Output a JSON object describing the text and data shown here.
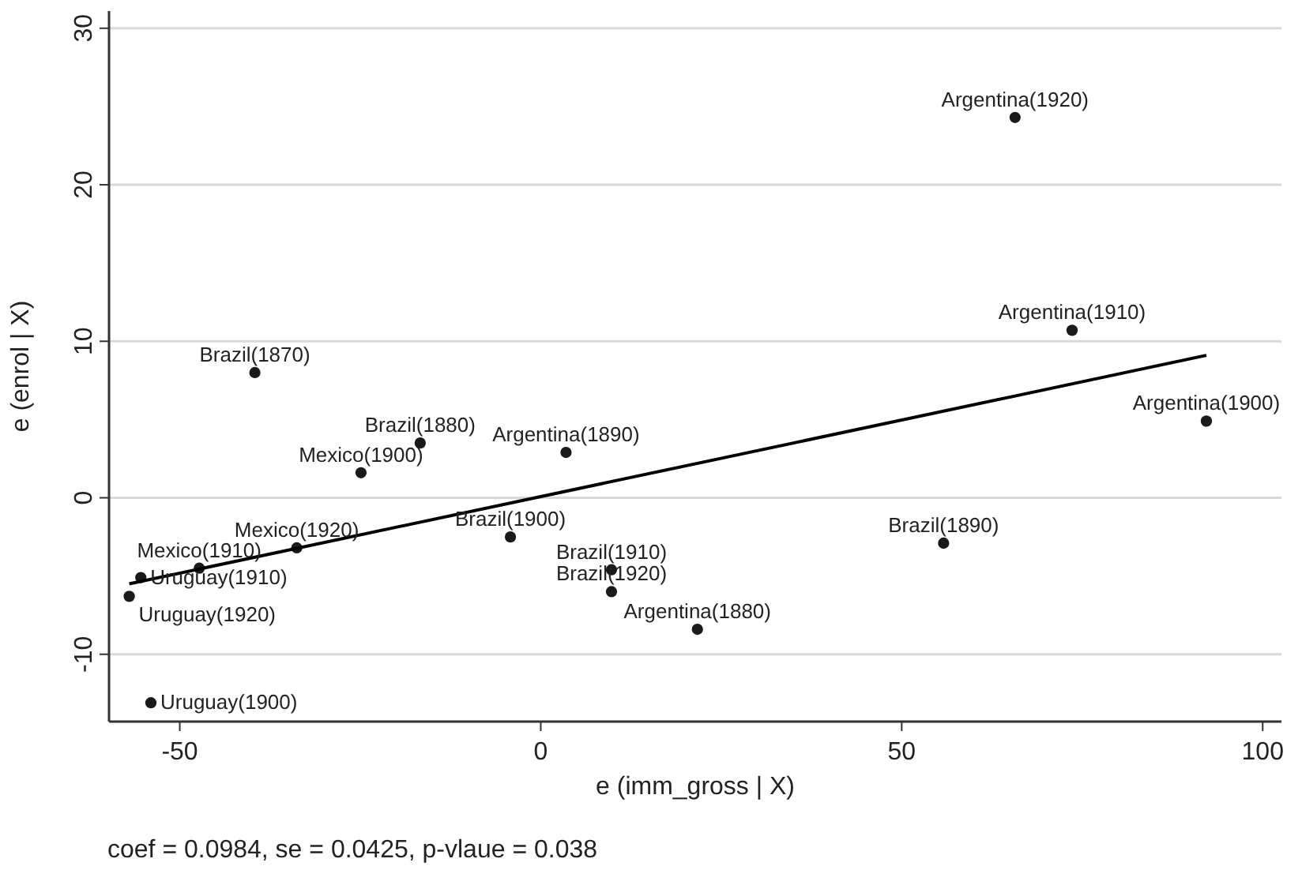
{
  "chart_data": {
    "type": "scatter",
    "xlabel": "e (imm_gross | X)",
    "ylabel": "e (enrol | X)",
    "xlim": [
      -59.8,
      102.6
    ],
    "ylim": [
      -14.3,
      31.1
    ],
    "xticks": [
      -50,
      0,
      50,
      100
    ],
    "yticks": [
      -10,
      0,
      10,
      20,
      30
    ],
    "grid": "y",
    "marker": "circle",
    "series": [
      {
        "type": "scatter",
        "color": "#1a1a1a",
        "x": [
          65.7,
          73.6,
          92.2,
          3.5,
          55.8,
          -4.2,
          9.8,
          9.8,
          21.7,
          -39.6,
          -16.7,
          -24.9,
          -33.8,
          -47.3,
          -55.4,
          -57.0,
          -54.0
        ],
        "values": [
          24.3,
          10.7,
          4.9,
          2.9,
          -2.9,
          -2.5,
          -4.6,
          -6.0,
          -8.4,
          8.0,
          3.5,
          1.6,
          -3.2,
          -4.5,
          -5.1,
          -6.3,
          -13.1
        ]
      },
      {
        "type": "line",
        "color": "#000000",
        "marker": "none",
        "x": [
          -57.0,
          92.2
        ],
        "values": [
          -5.5,
          9.1
        ]
      }
    ],
    "annotations": [
      {
        "text": "Argentina(1920)",
        "x": 65.7,
        "y": 24.3
      },
      {
        "text": "Argentina(1910)",
        "x": 73.6,
        "y": 10.7
      },
      {
        "text": "Argentina(1900)",
        "x": 92.2,
        "y": 4.9
      },
      {
        "text": "Argentina(1890)",
        "x": 3.5,
        "y": 2.9
      },
      {
        "text": "Brazil(1890)",
        "x": 55.8,
        "y": -2.9
      },
      {
        "text": "Brazil(1900)",
        "x": -4.2,
        "y": -2.5
      },
      {
        "text": "Brazil(1910)",
        "x": 9.8,
        "y": -4.6
      },
      {
        "text": "Brazil(1920)",
        "x": 9.8,
        "y": -6.0
      },
      {
        "text": "Argentina(1880)",
        "x": 21.7,
        "y": -8.4
      },
      {
        "text": "Brazil(1870)",
        "x": -39.6,
        "y": 8.0
      },
      {
        "text": "Brazil(1880)",
        "x": -16.7,
        "y": 3.5
      },
      {
        "text": "Mexico(1900)",
        "x": -24.9,
        "y": 1.6
      },
      {
        "text": "Mexico(1920)",
        "x": -33.8,
        "y": -3.2
      },
      {
        "text": "Mexico(1910)",
        "x": -47.3,
        "y": -4.5
      },
      {
        "text": "Uruguay(1910)",
        "x": -55.4,
        "y": -5.1
      },
      {
        "text": "Uruguay(1920)",
        "x": -57.0,
        "y": -6.3
      },
      {
        "text": "Uruguay(1900)",
        "x": -54.0,
        "y": -13.1
      },
      "coef = 0.0984, se = 0.0425, p-vlaue = 0.038"
    ]
  }
}
